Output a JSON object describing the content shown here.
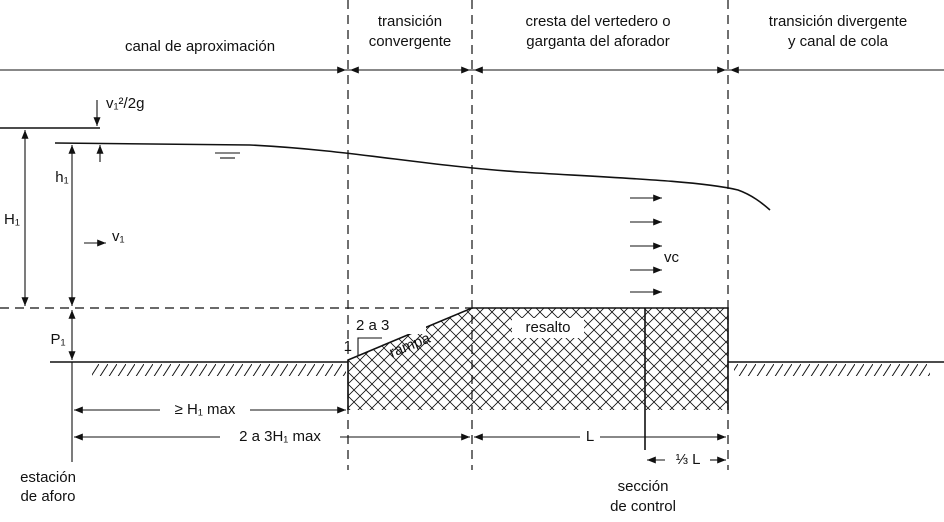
{
  "sections": [
    {
      "lines": [
        "canal de aproximación"
      ]
    },
    {
      "lines": [
        "transición",
        "convergente"
      ]
    },
    {
      "lines": [
        "cresta del vertedero o",
        "garganta del aforador"
      ]
    },
    {
      "lines": [
        "transición divergente",
        "y canal de cola"
      ]
    }
  ],
  "symbols": {
    "velocity_head": "v₁²/2g",
    "total_head": "H₁",
    "depth": "h₁",
    "upstream_velocity": "v₁",
    "critical_velocity": "vc",
    "sill_height": "P₁"
  },
  "structure": {
    "slope": "2 a 3",
    "slope_unit": "1",
    "ramp": "rampa",
    "crest": "resalto"
  },
  "dimensions": {
    "min_station_distance": "≥ H₁ max",
    "approach_length": "2 a 3H₁ max",
    "crest_length": "L",
    "control_offset": "⅓ L"
  },
  "stations": [
    {
      "lines": [
        "estación",
        "de aforo"
      ]
    },
    {
      "lines": [
        "sección",
        "de control"
      ]
    }
  ]
}
